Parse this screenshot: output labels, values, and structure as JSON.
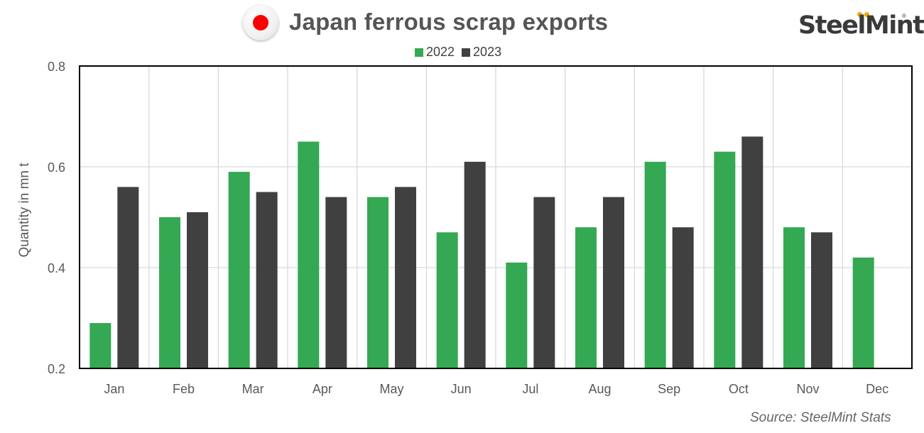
{
  "header": {
    "title": "Japan ferrous scrap exports",
    "flag_icon": "japan-flag-icon",
    "brand_name": "SteelMint",
    "brand_reg": "®"
  },
  "source": "Source: SteelMint Stats",
  "colors": {
    "series_2022": "#34a853",
    "series_2023": "#404040",
    "grid": "#d9d9d9",
    "text": "#595959"
  },
  "chart_data": {
    "type": "bar",
    "title": "Japan ferrous scrap exports",
    "ylabel": "Quantity in mn t",
    "xlabel": "",
    "ylim": [
      0.2,
      0.8
    ],
    "yticks": [
      "0.2",
      "0.4",
      "0.6",
      "0.8"
    ],
    "yticks_values": [
      0.2,
      0.4,
      0.6,
      0.8
    ],
    "categories": [
      "Jan",
      "Feb",
      "Mar",
      "Apr",
      "May",
      "Jun",
      "Jul",
      "Aug",
      "Sep",
      "Oct",
      "Nov",
      "Dec"
    ],
    "series": [
      {
        "name": "2022",
        "values": [
          0.29,
          0.5,
          0.59,
          0.65,
          0.54,
          0.47,
          0.41,
          0.48,
          0.61,
          0.63,
          0.48,
          0.42
        ]
      },
      {
        "name": "2023",
        "values": [
          0.56,
          0.51,
          0.55,
          0.54,
          0.56,
          0.61,
          0.54,
          0.54,
          0.48,
          0.66,
          0.47,
          null
        ]
      }
    ],
    "grid": true,
    "legend_position": "top-center"
  }
}
